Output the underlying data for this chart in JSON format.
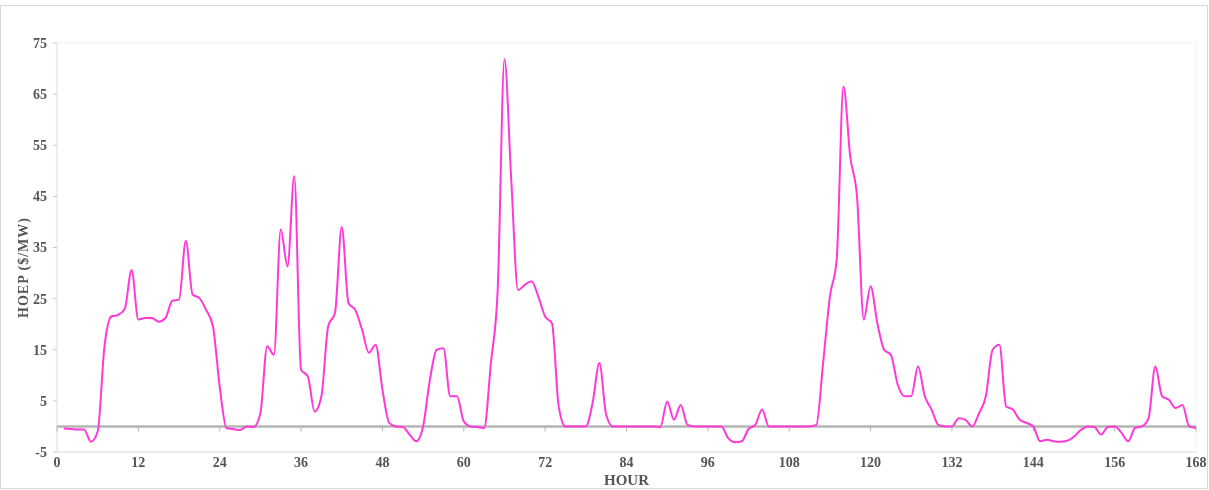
{
  "chart_data": {
    "type": "line",
    "xlabel": "HOUR",
    "ylabel": "HOEP ($/MW)",
    "x": [
      1,
      2,
      3,
      4,
      5,
      6,
      7,
      8,
      9,
      10,
      11,
      12,
      13,
      14,
      15,
      16,
      17,
      18,
      19,
      20,
      21,
      22,
      23,
      24,
      25,
      26,
      27,
      28,
      29,
      30,
      31,
      32,
      33,
      34,
      35,
      36,
      37,
      38,
      39,
      40,
      41,
      42,
      43,
      44,
      45,
      46,
      47,
      48,
      49,
      50,
      51,
      52,
      53,
      54,
      55,
      56,
      57,
      58,
      59,
      60,
      61,
      62,
      63,
      64,
      65,
      66,
      67,
      68,
      69,
      70,
      71,
      72,
      73,
      74,
      75,
      76,
      77,
      78,
      79,
      80,
      81,
      82,
      83,
      84,
      85,
      86,
      87,
      88,
      89,
      90,
      91,
      92,
      93,
      94,
      95,
      96,
      97,
      98,
      99,
      100,
      101,
      102,
      103,
      104,
      105,
      106,
      107,
      108,
      109,
      110,
      111,
      112,
      113,
      114,
      115,
      116,
      117,
      118,
      119,
      120,
      121,
      122,
      123,
      124,
      125,
      126,
      127,
      128,
      129,
      130,
      131,
      132,
      133,
      134,
      135,
      136,
      137,
      138,
      139,
      140,
      141,
      142,
      143,
      144,
      145,
      146,
      147,
      148,
      149,
      150,
      151,
      152,
      153,
      154,
      155,
      156,
      157,
      158,
      159,
      160,
      161,
      162,
      163,
      164,
      165,
      166,
      167,
      168
    ],
    "series": [
      {
        "color": "#ff38d8",
        "values": [
          -0.4,
          -0.5,
          -0.6,
          -0.6,
          -3,
          -1,
          15.6,
          21.5,
          21.8,
          23,
          30.6,
          20.9,
          21.2,
          21.2,
          20.5,
          21.2,
          24.6,
          24.8,
          36.3,
          25.8,
          25.1,
          22.8,
          19.6,
          7.8,
          -0.3,
          -0.5,
          -0.7,
          0,
          -0.1,
          2.6,
          15.7,
          14,
          38.5,
          31.3,
          49,
          11.1,
          9.8,
          2.9,
          5.9,
          19.6,
          22.2,
          39,
          24.1,
          22.8,
          18.9,
          14.4,
          16,
          7.2,
          0.7,
          0,
          -0.1,
          -1.6,
          -2.9,
          0,
          9.1,
          15,
          15.3,
          5.9,
          5.9,
          1,
          0,
          -0.1,
          -0.3,
          12.4,
          26.7,
          71.8,
          48.3,
          26.7,
          27.7,
          28.4,
          25.4,
          21.5,
          20.2,
          3.9,
          0,
          0,
          0,
          0,
          4.6,
          12.4,
          2.3,
          0,
          0,
          0,
          0,
          0,
          0,
          0,
          -0.1,
          4.9,
          1.3,
          4.2,
          0.3,
          0,
          0,
          0,
          0,
          0,
          -2.3,
          -3.1,
          -2.9,
          -0.5,
          0.3,
          3.3,
          0,
          0,
          0,
          0,
          0,
          0,
          0,
          0.3,
          12.4,
          25.4,
          32.6,
          66.5,
          52.8,
          45,
          20.9,
          27.4,
          20.2,
          15,
          14,
          8.2,
          5.9,
          5.9,
          11.7,
          5.9,
          3.3,
          0.3,
          0,
          0,
          1.6,
          1.3,
          0,
          2.6,
          5.9,
          15,
          16,
          3.9,
          3.3,
          1.3,
          0.7,
          0,
          -2.9,
          -2.6,
          -2.9,
          -3,
          -2.8,
          -2,
          -0.7,
          0,
          -0.1,
          -1.6,
          -0.1,
          0,
          -1.2,
          -2.9,
          -0.3,
          0,
          1.6,
          11.7,
          5.9,
          5.2,
          3.6,
          4.2,
          0,
          -0.3
        ]
      }
    ],
    "xlim": [
      0,
      168
    ],
    "xticks": [
      0,
      12,
      24,
      36,
      48,
      60,
      72,
      84,
      96,
      108,
      120,
      132,
      144,
      156,
      168
    ],
    "ylim": [
      -5,
      75
    ],
    "yticks": [
      -5,
      5,
      15,
      25,
      35,
      45,
      55,
      65,
      75
    ],
    "ref_lines": [
      {
        "axis": "y",
        "value": 0,
        "color": "#b4b4b4"
      }
    ],
    "grid": false,
    "marker": "none",
    "line_style": "solid"
  }
}
